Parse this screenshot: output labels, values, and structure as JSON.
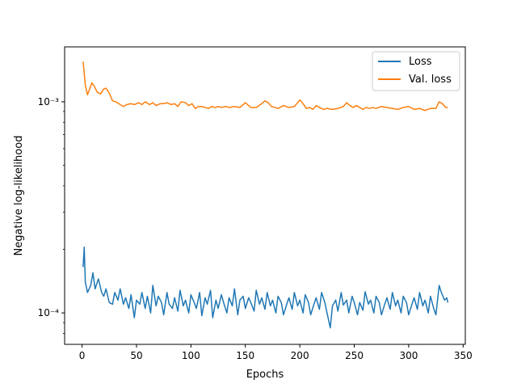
{
  "chart_data": {
    "type": "line",
    "xlabel": "Epochs",
    "ylabel": "Negative log-likelihood",
    "xlim": [
      -16,
      352
    ],
    "ylim": [
      7.1e-05,
      0.00182
    ],
    "yscale": "log",
    "xticks": [
      0,
      50,
      100,
      150,
      200,
      250,
      300,
      350
    ],
    "xtick_labels": [
      "0",
      "50",
      "100",
      "150",
      "200",
      "250",
      "300",
      "350"
    ],
    "yticks": [
      0.0001,
      0.001
    ],
    "ytick_labels": [
      "10⁻⁴",
      "10⁻³"
    ],
    "grid": false,
    "legend_position": "top-right",
    "series": [
      {
        "name": "Loss",
        "color": "#1f77b4",
        "x": [
          1,
          2,
          3,
          5,
          8,
          10,
          12,
          15,
          18,
          20,
          22,
          25,
          28,
          30,
          33,
          35,
          38,
          40,
          43,
          45,
          48,
          50,
          53,
          55,
          58,
          60,
          63,
          65,
          68,
          70,
          73,
          75,
          78,
          80,
          83,
          85,
          88,
          90,
          93,
          95,
          98,
          100,
          103,
          105,
          108,
          110,
          113,
          115,
          118,
          120,
          123,
          125,
          128,
          130,
          133,
          135,
          138,
          140,
          143,
          145,
          148,
          150,
          153,
          155,
          158,
          160,
          163,
          165,
          168,
          170,
          173,
          175,
          178,
          180,
          183,
          185,
          188,
          190,
          193,
          195,
          198,
          200,
          203,
          205,
          208,
          210,
          213,
          215,
          218,
          220,
          223,
          225,
          228,
          230,
          233,
          235,
          238,
          240,
          243,
          245,
          248,
          250,
          253,
          255,
          258,
          260,
          263,
          265,
          268,
          270,
          273,
          275,
          278,
          280,
          283,
          285,
          288,
          290,
          293,
          295,
          298,
          300,
          303,
          305,
          308,
          310,
          313,
          315,
          318,
          320,
          323,
          325,
          328,
          330,
          333,
          335,
          336
        ],
        "values": [
          0.000165,
          0.000205,
          0.00014,
          0.000125,
          0.000135,
          0.000155,
          0.00013,
          0.000145,
          0.000125,
          0.00012,
          0.00013,
          0.000112,
          0.00011,
          0.000125,
          0.000115,
          0.00013,
          0.00011,
          0.000118,
          0.000105,
          0.000122,
          9.5e-05,
          0.000115,
          0.00011,
          0.000125,
          0.000105,
          0.00012,
          0.0001,
          0.000135,
          0.000108,
          0.00012,
          0.000112,
          9.8e-05,
          0.000125,
          0.00011,
          0.000105,
          0.000118,
          0.000102,
          0.000128,
          0.000108,
          0.000115,
          0.0001,
          0.000122,
          0.000112,
          0.000105,
          0.000125,
          9.7e-05,
          0.000118,
          0.00011,
          0.000128,
          9.5e-05,
          0.000115,
          0.000105,
          0.000122,
          0.000112,
          0.0001,
          0.000118,
          0.000108,
          0.00013,
          9.8e-05,
          0.000115,
          0.00012,
          0.000105,
          0.000118,
          0.000112,
          0.000102,
          0.000128,
          0.00011,
          0.000118,
          0.000104,
          0.000125,
          0.000108,
          0.000115,
          0.0001,
          0.00012,
          0.000112,
          9.8e-05,
          0.00011,
          0.000118,
          0.000104,
          0.000125,
          0.000108,
          0.000115,
          0.0001,
          0.000122,
          0.000112,
          9.8e-05,
          0.00011,
          0.000118,
          0.000104,
          0.000125,
          0.000112,
          0.0001,
          8.5e-05,
          0.000108,
          0.000115,
          0.000102,
          0.000125,
          0.000109,
          0.000115,
          0.0001,
          0.00012,
          0.000112,
          9.8e-05,
          0.000112,
          0.000103,
          0.000126,
          0.00011,
          0.000115,
          0.0001,
          0.00012,
          0.000112,
          9.8e-05,
          0.00011,
          0.000118,
          0.000104,
          0.000125,
          0.000108,
          0.000115,
          0.0001,
          0.00012,
          0.000112,
          9.8e-05,
          0.00011,
          0.000118,
          0.000104,
          0.000125,
          0.000108,
          0.000115,
          0.0001,
          0.00012,
          0.000105,
          9.8e-05,
          0.000135,
          0.000125,
          0.000115,
          0.000118,
          0.000112
        ]
      },
      {
        "name": "Val. loss",
        "color": "#ff7f0e",
        "x": [
          1,
          3,
          5,
          7,
          9,
          11,
          14,
          17,
          20,
          22,
          25,
          28,
          31,
          35,
          38,
          41,
          45,
          48,
          52,
          55,
          58,
          62,
          65,
          68,
          72,
          75,
          78,
          82,
          85,
          88,
          91,
          95,
          98,
          101,
          104,
          107,
          110,
          113,
          116,
          119,
          122,
          125,
          128,
          132,
          135,
          140,
          145,
          150,
          155,
          160,
          165,
          168,
          171,
          174,
          177,
          180,
          185,
          190,
          195,
          200,
          203,
          206,
          209,
          212,
          215,
          218,
          222,
          225,
          230,
          235,
          240,
          243,
          246,
          249,
          252,
          255,
          258,
          261,
          264,
          267,
          270,
          275,
          280,
          285,
          290,
          295,
          300,
          305,
          310,
          315,
          320,
          325,
          328,
          331,
          334,
          336
        ],
        "values": [
          0.00155,
          0.0012,
          0.00108,
          0.00115,
          0.00123,
          0.00119,
          0.00111,
          0.00109,
          0.00115,
          0.00116,
          0.0011,
          0.00101,
          0.001,
          0.00097,
          0.00095,
          0.00097,
          0.00098,
          0.00097,
          0.00099,
          0.00097,
          0.001,
          0.00097,
          0.00099,
          0.00096,
          0.00098,
          0.00098,
          0.00099,
          0.00097,
          0.00098,
          0.00095,
          0.001,
          0.00099,
          0.00096,
          0.00098,
          0.00093,
          0.00095,
          0.00095,
          0.00094,
          0.00093,
          0.00095,
          0.00094,
          0.00095,
          0.00094,
          0.00095,
          0.00094,
          0.00095,
          0.00094,
          0.00099,
          0.00094,
          0.00094,
          0.00098,
          0.00101,
          0.00099,
          0.00095,
          0.00094,
          0.00093,
          0.00096,
          0.00094,
          0.00095,
          0.00102,
          0.00098,
          0.00093,
          0.00094,
          0.00092,
          0.00096,
          0.00094,
          0.00092,
          0.00093,
          0.00092,
          0.00093,
          0.00095,
          0.00099,
          0.00096,
          0.00094,
          0.00096,
          0.00094,
          0.00092,
          0.00094,
          0.00093,
          0.00094,
          0.00093,
          0.00095,
          0.00094,
          0.00093,
          0.00092,
          0.00094,
          0.00095,
          0.00092,
          0.00093,
          0.00091,
          0.00093,
          0.00093,
          0.001,
          0.00098,
          0.00094,
          0.00094
        ]
      }
    ]
  }
}
